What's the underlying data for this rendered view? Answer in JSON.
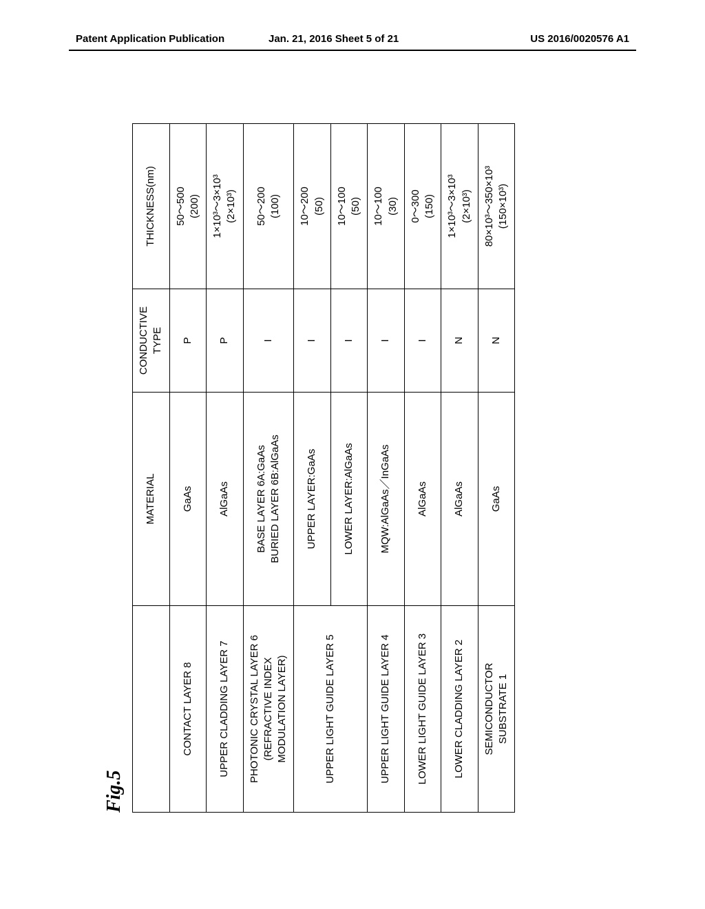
{
  "header": {
    "left": "Patent Application Publication",
    "center": "Jan. 21, 2016  Sheet 5 of 21",
    "right": "US 2016/0020576 A1"
  },
  "figure": {
    "label": "Fig.5",
    "columns": {
      "layer": "",
      "material": "MATERIAL",
      "conductive": "CONDUCTIVE TYPE",
      "thickness": "THICKNESS(nm)"
    },
    "rows": [
      {
        "layer": "CONTACT LAYER 8",
        "material": "GaAs",
        "conductive": "P",
        "thickness_main": "50～500",
        "thickness_paren": "(200)"
      },
      {
        "layer": "UPPER CLADDING LAYER 7",
        "material": "AlGaAs",
        "conductive": "P",
        "thickness_main": "1×10³～3×10³",
        "thickness_paren": "(2×10³)"
      },
      {
        "layer_line1": "PHOTONIC CRYSTAL LAYER 6",
        "layer_line2": "(REFRACTIVE INDEX",
        "layer_line3": "MODULATION LAYER)",
        "material_line1": "BASE LAYER 6A:GaAs",
        "material_line2": "BURIED LAYER 6B:AlGaAs",
        "conductive": "I",
        "thickness_main": "50～200",
        "thickness_paren": "(100)"
      },
      {
        "layer": "UPPER LIGHT GUIDE LAYER 5",
        "material_upper": "UPPER LAYER:GaAs",
        "material_lower": "LOWER LAYER:AlGaAs",
        "conductive_upper": "I",
        "conductive_lower": "I",
        "thickness_upper_main": "10～200",
        "thickness_upper_paren": "(50)",
        "thickness_lower_main": "10～100",
        "thickness_lower_paren": "(50)"
      },
      {
        "layer": "UPPER LIGHT GUIDE LAYER 4",
        "material": "MQW:AlGaAs／InGaAs",
        "conductive": "I",
        "thickness_main": "10～100",
        "thickness_paren": "(30)"
      },
      {
        "layer": "LOWER LIGHT GUIDE LAYER 3",
        "material": "AlGaAs",
        "conductive": "I",
        "thickness_main": "0～300",
        "thickness_paren": "(150)"
      },
      {
        "layer": "LOWER CLADDING LAYER 2",
        "material": "AlGaAs",
        "conductive": "N",
        "thickness_main": "1×10³～3×10³",
        "thickness_paren": "(2×10³)"
      },
      {
        "layer_line1": "SEMICONDUCTOR",
        "layer_line2": "SUBSTRATE 1",
        "material": "GaAs",
        "conductive": "N",
        "thickness_main": "80×10³～350×10³",
        "thickness_paren": "(150×10³)"
      }
    ]
  }
}
